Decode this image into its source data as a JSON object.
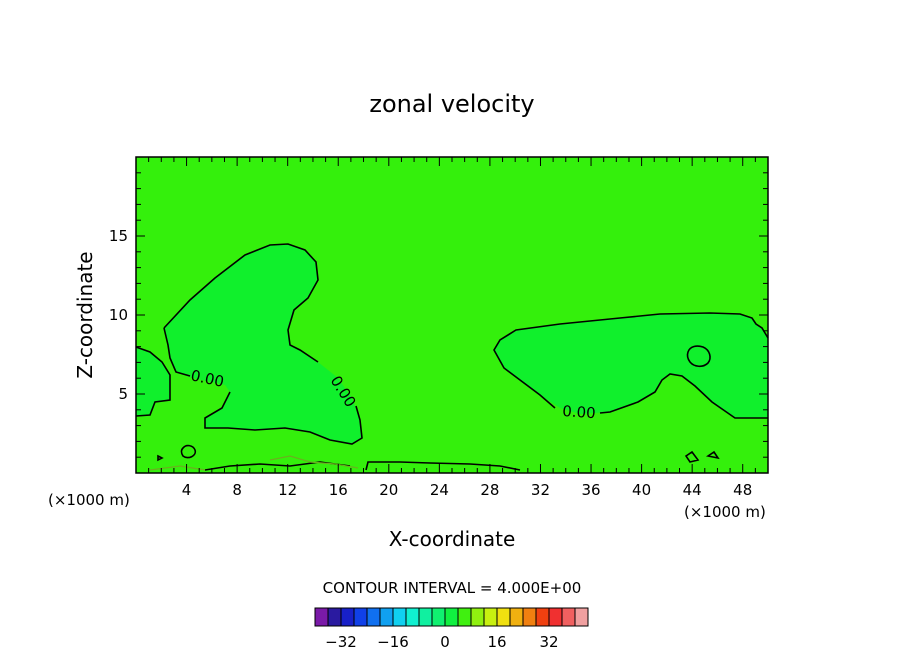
{
  "chart_data": {
    "type": "heatmap",
    "title": "zonal velocity",
    "xlabel": "X-coordinate",
    "ylabel": "Z-coordinate",
    "x_unit": "(×1000 m)",
    "y_unit": "(×1000 m)",
    "xlim": [
      0,
      50
    ],
    "ylim": [
      0,
      20
    ],
    "x_ticks": [
      4,
      8,
      12,
      16,
      20,
      24,
      28,
      32,
      36,
      40,
      44,
      48
    ],
    "y_ticks": [
      5,
      10,
      15
    ],
    "contour_interval_label": "CONTOUR INTERVAL = 4.000E+00",
    "contour_labels": [
      "0.00",
      "0.00",
      "0.00"
    ],
    "colorbar": {
      "ticks": [
        -32,
        -16,
        0,
        16,
        32
      ],
      "levels": [
        -36,
        -32,
        -28,
        -24,
        -20,
        -16,
        -12,
        -8,
        -4,
        0,
        4,
        8,
        12,
        16,
        20,
        24,
        28,
        32,
        36
      ],
      "colors": [
        "#7a1aa8",
        "#2a1aa0",
        "#1820c8",
        "#1040e8",
        "#1070f0",
        "#10a0f0",
        "#10d0f0",
        "#10f0d0",
        "#10f0a0",
        "#10f070",
        "#10f040",
        "#40f010",
        "#90f010",
        "#c8f010",
        "#f0e010",
        "#f0b010",
        "#f08010",
        "#f04010",
        "#f03030",
        "#f06060",
        "#f0a0a0"
      ]
    },
    "colors": {
      "background_field": "#34f00c",
      "region_field": "#10f02c",
      "contour": "#000000"
    }
  }
}
